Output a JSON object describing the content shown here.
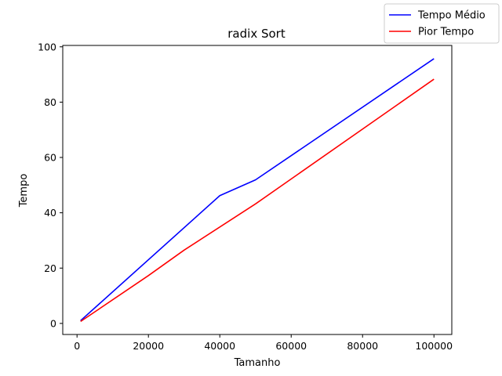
{
  "chart_data": {
    "type": "line",
    "title": "radix Sort",
    "xlabel": "Tamanho",
    "ylabel": "Tempo",
    "xlim": [
      -4000,
      105000
    ],
    "ylim": [
      -4,
      100.5
    ],
    "xticks": [
      0,
      20000,
      40000,
      60000,
      80000,
      100000
    ],
    "yticks": [
      0,
      20,
      40,
      60,
      80,
      100
    ],
    "grid": false,
    "legend": "top-right",
    "series": [
      {
        "name": "Tempo Médio",
        "color": "#0000ff",
        "x": [
          1000,
          40000,
          50000,
          100000
        ],
        "y": [
          1.0,
          46.2,
          51.9,
          95.7
        ]
      },
      {
        "name": "Pior Tempo",
        "color": "#ff0000",
        "x": [
          1000,
          20000,
          30000,
          50000,
          100000
        ],
        "y": [
          0.7,
          17.3,
          26.5,
          43.2,
          88.3
        ]
      }
    ]
  }
}
